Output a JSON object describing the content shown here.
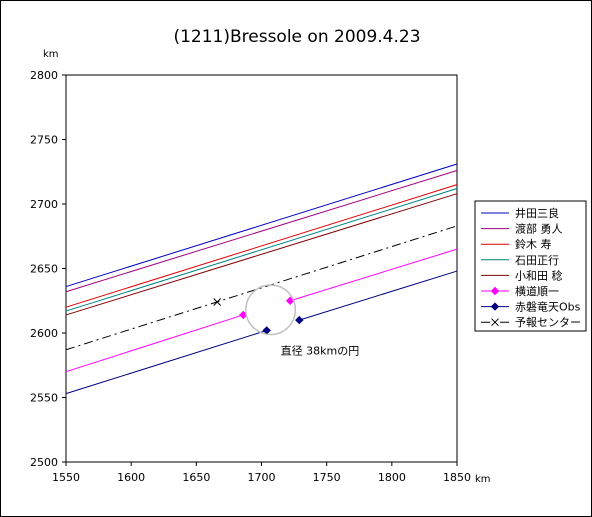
{
  "chart_data": {
    "type": "line",
    "title": "(1211)Bressole on 2009.4.23",
    "ylabel": "km",
    "xlabel": "km",
    "xlim": [
      1550,
      1850
    ],
    "ylim": [
      2500,
      2800
    ],
    "xticks": [
      1550,
      1600,
      1650,
      1700,
      1750,
      1800,
      1850
    ],
    "yticks": [
      2500,
      2550,
      2600,
      2650,
      2700,
      2750,
      2800
    ],
    "grid": false,
    "legend_position": "right",
    "series": [
      {
        "name": "井田三良",
        "color": "#0000c0",
        "style": "solid",
        "marker": "none",
        "segments": [
          [
            [
              1550,
              2636
            ],
            [
              1850,
              2731
            ]
          ]
        ]
      },
      {
        "name": "渡部 勇人",
        "color": "#a00080",
        "style": "solid",
        "marker": "none",
        "segments": [
          [
            [
              1550,
              2632
            ],
            [
              1850,
              2726
            ]
          ]
        ]
      },
      {
        "name": "鈴木 寿",
        "color": "#e00000",
        "style": "solid",
        "marker": "none",
        "segments": [
          [
            [
              1550,
              2620
            ],
            [
              1850,
              2715
            ]
          ]
        ]
      },
      {
        "name": "石田正行",
        "color": "#008080",
        "style": "solid",
        "marker": "none",
        "segments": [
          [
            [
              1550,
              2617
            ],
            [
              1850,
              2712
            ]
          ]
        ]
      },
      {
        "name": "小和田 稔",
        "color": "#800000",
        "style": "solid",
        "marker": "none",
        "segments": [
          [
            [
              1550,
              2614
            ],
            [
              1850,
              2708
            ]
          ]
        ]
      },
      {
        "name": "横道順一",
        "color": "#ff00ff",
        "style": "solid",
        "marker": "diamond",
        "segments": [
          [
            [
              1550,
              2570
            ],
            [
              1686,
              2614
            ]
          ],
          [
            [
              1722,
              2625
            ],
            [
              1850,
              2665
            ]
          ]
        ]
      },
      {
        "name": "赤磐竜天Obs",
        "color": "#000080",
        "style": "solid",
        "marker": "diamond",
        "segments": [
          [
            [
              1550,
              2553
            ],
            [
              1704,
              2602
            ]
          ],
          [
            [
              1729,
              2610
            ],
            [
              1850,
              2648
            ]
          ]
        ]
      },
      {
        "name": "予報センター",
        "color": "#000000",
        "style": "dashdot",
        "marker": "x",
        "segments": [
          [
            [
              1550,
              2587
            ],
            [
              1850,
              2683
            ]
          ]
        ],
        "marker_points": [
          [
            1666,
            2624
          ]
        ]
      }
    ],
    "circle": {
      "center": [
        1707,
        2618
      ],
      "diameter": 38,
      "label": "直径 38kmの円",
      "color": "#c0c0c0"
    }
  }
}
